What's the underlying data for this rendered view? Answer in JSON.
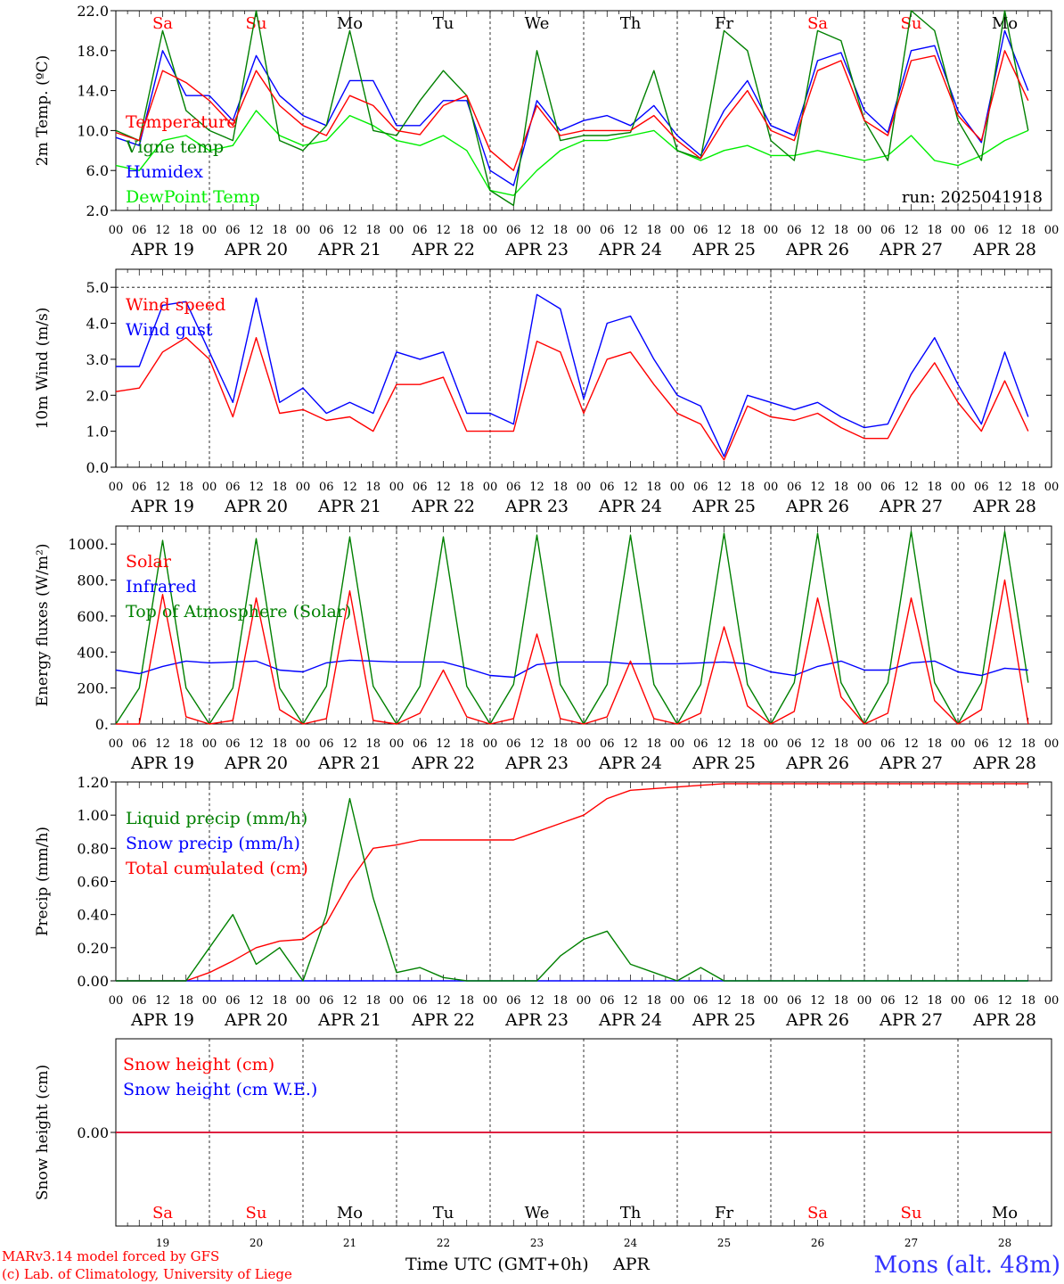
{
  "chart_data": [
    {
      "type": "line",
      "ylabel": "2m Temp. (ºC)",
      "ylim": [
        2.0,
        22.0
      ],
      "yticks": [
        "2.0",
        "6.0",
        "10.0",
        "14.0",
        "18.0",
        "22.0"
      ],
      "ytick_values": [
        2,
        6,
        10,
        14,
        18,
        22
      ],
      "grid": false,
      "legend_placement": "left",
      "x_hours": [
        0,
        6,
        12,
        18,
        24,
        30,
        36,
        42,
        48,
        54,
        60,
        66,
        72,
        78,
        84,
        90,
        96,
        102,
        108,
        114,
        120,
        126,
        132,
        138,
        144,
        150,
        156,
        162,
        168,
        174,
        180,
        186,
        192,
        198,
        204,
        210,
        216,
        222,
        228,
        234
      ],
      "annotation": "run: 2025041918",
      "series": [
        {
          "name": "Temperature",
          "color": "#ff0000",
          "values": [
            9.8,
            9.0,
            16.0,
            14.8,
            13.0,
            10.5,
            16.0,
            12.5,
            10.5,
            9.5,
            13.5,
            12.5,
            10.0,
            9.6,
            12.5,
            13.5,
            8.0,
            6.0,
            12.5,
            9.5,
            10.0,
            10.0,
            10.0,
            11.5,
            9.0,
            7.2,
            11.0,
            14.0,
            10.0,
            9.0,
            16.0,
            17.0,
            11.0,
            9.5,
            17.0,
            17.5,
            11.5,
            9.0,
            18.0,
            13.0
          ]
        },
        {
          "name": "Vigne temp",
          "color": "#008000",
          "values": [
            10.0,
            9.0,
            20.0,
            12.0,
            10.0,
            9.0,
            22.0,
            9.0,
            8.0,
            10.5,
            20.0,
            10.0,
            9.5,
            13.0,
            16.0,
            13.5,
            4.0,
            2.5,
            18.0,
            9.0,
            9.5,
            9.5,
            9.8,
            16.0,
            8.0,
            7.2,
            20.0,
            18.0,
            9.0,
            7.0,
            20.0,
            19.0,
            11.0,
            7.0,
            22.0,
            20.0,
            11.0,
            7.0,
            22.0,
            10.0
          ]
        },
        {
          "name": "Humidex",
          "color": "#0000ff",
          "values": [
            9.3,
            8.5,
            18.0,
            13.5,
            13.5,
            11.0,
            17.5,
            13.5,
            11.5,
            10.5,
            15.0,
            15.0,
            10.5,
            10.5,
            13.0,
            13.0,
            6.0,
            4.5,
            13.0,
            10.0,
            11.0,
            11.5,
            10.5,
            12.5,
            9.5,
            7.5,
            12.0,
            15.0,
            10.5,
            9.5,
            17.0,
            17.8,
            12.0,
            9.8,
            18.0,
            18.5,
            12.0,
            8.8,
            20.0,
            14.0
          ]
        },
        {
          "name": "DewPoint Temp",
          "color": "#00ee00",
          "values": [
            6.5,
            6.0,
            9.0,
            9.5,
            8.0,
            8.5,
            12.0,
            9.5,
            8.5,
            9.0,
            11.5,
            10.5,
            9.0,
            8.5,
            9.5,
            8.0,
            4.0,
            3.5,
            6.0,
            8.0,
            9.0,
            9.0,
            9.5,
            10.0,
            8.0,
            7.0,
            8.0,
            8.5,
            7.5,
            7.5,
            8.0,
            7.5,
            7.0,
            7.5,
            9.5,
            7.0,
            6.5,
            7.5,
            9.0,
            10.0
          ]
        }
      ]
    },
    {
      "type": "line",
      "ylabel": "10m Wind (m/s)",
      "ylim": [
        0.0,
        5.5
      ],
      "yticks": [
        "0.0",
        "1.0",
        "2.0",
        "3.0",
        "4.0",
        "5.0"
      ],
      "ytick_values": [
        0,
        1,
        2,
        3,
        4,
        5
      ],
      "dashed_line_at": 5.0,
      "grid": false,
      "legend_placement": "left",
      "x_hours": [
        0,
        6,
        12,
        18,
        24,
        30,
        36,
        42,
        48,
        54,
        60,
        66,
        72,
        78,
        84,
        90,
        96,
        102,
        108,
        114,
        120,
        126,
        132,
        138,
        144,
        150,
        156,
        162,
        168,
        174,
        180,
        186,
        192,
        198,
        204,
        210,
        216,
        222,
        228,
        234
      ],
      "series": [
        {
          "name": "Wind speed",
          "color": "#ff0000",
          "values": [
            2.1,
            2.2,
            3.2,
            3.6,
            3.0,
            1.4,
            3.6,
            1.5,
            1.6,
            1.3,
            1.4,
            1.0,
            2.3,
            2.3,
            2.5,
            1.0,
            1.0,
            1.0,
            3.5,
            3.2,
            1.5,
            3.0,
            3.2,
            2.3,
            1.5,
            1.2,
            0.2,
            1.7,
            1.4,
            1.3,
            1.5,
            1.1,
            0.8,
            0.8,
            2.0,
            2.9,
            1.8,
            1.0,
            2.4,
            1.0
          ]
        },
        {
          "name": "Wind gust",
          "color": "#0000ff",
          "values": [
            2.8,
            2.8,
            4.5,
            4.6,
            3.2,
            1.8,
            4.7,
            1.8,
            2.2,
            1.5,
            1.8,
            1.5,
            3.2,
            3.0,
            3.2,
            1.5,
            1.5,
            1.2,
            4.8,
            4.4,
            1.9,
            4.0,
            4.2,
            3.0,
            2.0,
            1.7,
            0.3,
            2.0,
            1.8,
            1.6,
            1.8,
            1.4,
            1.1,
            1.2,
            2.6,
            3.6,
            2.3,
            1.2,
            3.2,
            1.4
          ]
        }
      ]
    },
    {
      "type": "line",
      "ylabel": "Energy fluxes (W/m²)",
      "ylim": [
        0,
        1100
      ],
      "yticks": [
        "0.",
        "200.",
        "400.",
        "600.",
        "800.",
        "1000."
      ],
      "ytick_values": [
        0,
        200,
        400,
        600,
        800,
        1000
      ],
      "grid": false,
      "legend_placement": "left",
      "x_hours": [
        0,
        6,
        12,
        18,
        24,
        30,
        36,
        42,
        48,
        54,
        60,
        66,
        72,
        78,
        84,
        90,
        96,
        102,
        108,
        114,
        120,
        126,
        132,
        138,
        144,
        150,
        156,
        162,
        168,
        174,
        180,
        186,
        192,
        198,
        204,
        210,
        216,
        222,
        228,
        234
      ],
      "series": [
        {
          "name": "Solar",
          "color": "#ff0000",
          "values": [
            0,
            0,
            720,
            40,
            0,
            20,
            700,
            80,
            0,
            30,
            740,
            20,
            0,
            60,
            300,
            40,
            0,
            30,
            500,
            30,
            0,
            40,
            350,
            30,
            0,
            60,
            540,
            100,
            0,
            70,
            700,
            150,
            0,
            60,
            700,
            130,
            0,
            80,
            800,
            0
          ]
        },
        {
          "name": "Infrared",
          "color": "#0000ff",
          "values": [
            300,
            280,
            320,
            350,
            340,
            345,
            350,
            300,
            290,
            340,
            355,
            350,
            345,
            345,
            345,
            310,
            270,
            260,
            330,
            345,
            345,
            345,
            335,
            335,
            335,
            340,
            345,
            335,
            290,
            270,
            320,
            350,
            300,
            300,
            340,
            350,
            290,
            270,
            310,
            300
          ]
        },
        {
          "name": "Top of Atmosphere (Solar)",
          "color": "#008000",
          "values": [
            0,
            200,
            1020,
            200,
            0,
            200,
            1030,
            200,
            0,
            210,
            1040,
            210,
            0,
            210,
            1040,
            210,
            0,
            220,
            1050,
            220,
            0,
            220,
            1050,
            220,
            0,
            220,
            1060,
            220,
            0,
            230,
            1060,
            230,
            0,
            230,
            1070,
            230,
            0,
            230,
            1070,
            230
          ]
        }
      ]
    },
    {
      "type": "line",
      "ylabel": "Precip (mm/h)",
      "ylim": [
        0.0,
        1.2
      ],
      "yticks": [
        "0.00",
        "0.20",
        "0.40",
        "0.60",
        "0.80",
        "1.00",
        "1.20"
      ],
      "ytick_values": [
        0,
        0.2,
        0.4,
        0.6,
        0.8,
        1.0,
        1.2
      ],
      "grid": false,
      "legend_placement": "left",
      "x_hours": [
        0,
        6,
        12,
        18,
        24,
        30,
        36,
        42,
        48,
        54,
        60,
        66,
        72,
        78,
        84,
        90,
        96,
        102,
        108,
        114,
        120,
        126,
        132,
        138,
        144,
        150,
        156,
        162,
        168,
        174,
        180,
        186,
        192,
        198,
        204,
        210,
        216,
        222,
        228,
        234
      ],
      "series": [
        {
          "name": "Liquid precip (mm/h)",
          "color": "#008000",
          "values": [
            0,
            0,
            0,
            0,
            0.2,
            0.4,
            0.1,
            0.2,
            0,
            0.4,
            1.1,
            0.5,
            0.05,
            0.08,
            0.02,
            0,
            0,
            0,
            0,
            0.15,
            0.25,
            0.3,
            0.1,
            0.05,
            0,
            0.08,
            0,
            0,
            0,
            0,
            0,
            0,
            0,
            0,
            0,
            0,
            0,
            0,
            0,
            0
          ]
        },
        {
          "name": "Snow precip (mm/h)",
          "color": "#0000ff",
          "values": [
            0,
            0,
            0,
            0,
            0,
            0,
            0,
            0,
            0,
            0,
            0,
            0,
            0,
            0,
            0,
            0,
            0,
            0,
            0,
            0,
            0,
            0,
            0,
            0,
            0,
            0,
            0,
            0,
            0,
            0,
            0,
            0,
            0,
            0,
            0,
            0,
            0,
            0,
            0,
            0
          ]
        },
        {
          "name": "Total cumulated (cm)",
          "color": "#ff0000",
          "values": [
            0,
            0,
            0,
            0,
            0.05,
            0.12,
            0.2,
            0.24,
            0.25,
            0.35,
            0.6,
            0.8,
            0.82,
            0.85,
            0.85,
            0.85,
            0.85,
            0.85,
            0.9,
            0.95,
            1.0,
            1.1,
            1.15,
            1.16,
            1.17,
            1.18,
            1.19,
            1.19,
            1.19,
            1.19,
            1.19,
            1.19,
            1.19,
            1.19,
            1.19,
            1.19,
            1.19,
            1.19,
            1.19,
            1.19
          ]
        }
      ]
    },
    {
      "type": "line",
      "ylabel": "Snow height (cm)",
      "ylim": [
        -1.0,
        1.0
      ],
      "yticks": [
        "0.00"
      ],
      "ytick_values": [
        0
      ],
      "grid": false,
      "legend_placement": "left",
      "x_hours": [
        0,
        240
      ],
      "series": [
        {
          "name": "Snow height (cm)",
          "color": "#ff0000",
          "values": [
            0,
            0
          ]
        },
        {
          "name": "Snow height (cm W.E.)",
          "color": "#0000ff",
          "values": [
            0,
            0
          ]
        }
      ]
    }
  ],
  "axes": {
    "hour_ticks": [
      "00",
      "06",
      "12",
      "18"
    ],
    "date_labels": [
      "APR 19",
      "APR 20",
      "APR 21",
      "APR 22",
      "APR 23",
      "APR 24",
      "APR 25",
      "APR 26",
      "APR 27",
      "APR 28"
    ],
    "weekdays": [
      {
        "label": "Sa",
        "color": "#ff0000"
      },
      {
        "label": "Su",
        "color": "#ff0000"
      },
      {
        "label": "Mo",
        "color": "#000000"
      },
      {
        "label": "Tu",
        "color": "#000000"
      },
      {
        "label": "We",
        "color": "#000000"
      },
      {
        "label": "Th",
        "color": "#000000"
      },
      {
        "label": "Fr",
        "color": "#000000"
      },
      {
        "label": "Sa",
        "color": "#ff0000"
      },
      {
        "label": "Su",
        "color": "#ff0000"
      },
      {
        "label": "Mo",
        "color": "#000000"
      }
    ],
    "day_numbers": [
      "19",
      "20",
      "21",
      "22",
      "23",
      "24",
      "25",
      "26",
      "27",
      "28"
    ],
    "xlabel": "Time UTC (GMT+0h)",
    "month": "APR"
  },
  "footer": {
    "credit_line1": "MARv3.14 model forced by GFS",
    "credit_line2": "(c) Lab. of Climatology, University of Liege",
    "location": "Mons (alt. 48m)",
    "credit_color": "#ff0000",
    "location_color": "#3333ff"
  }
}
